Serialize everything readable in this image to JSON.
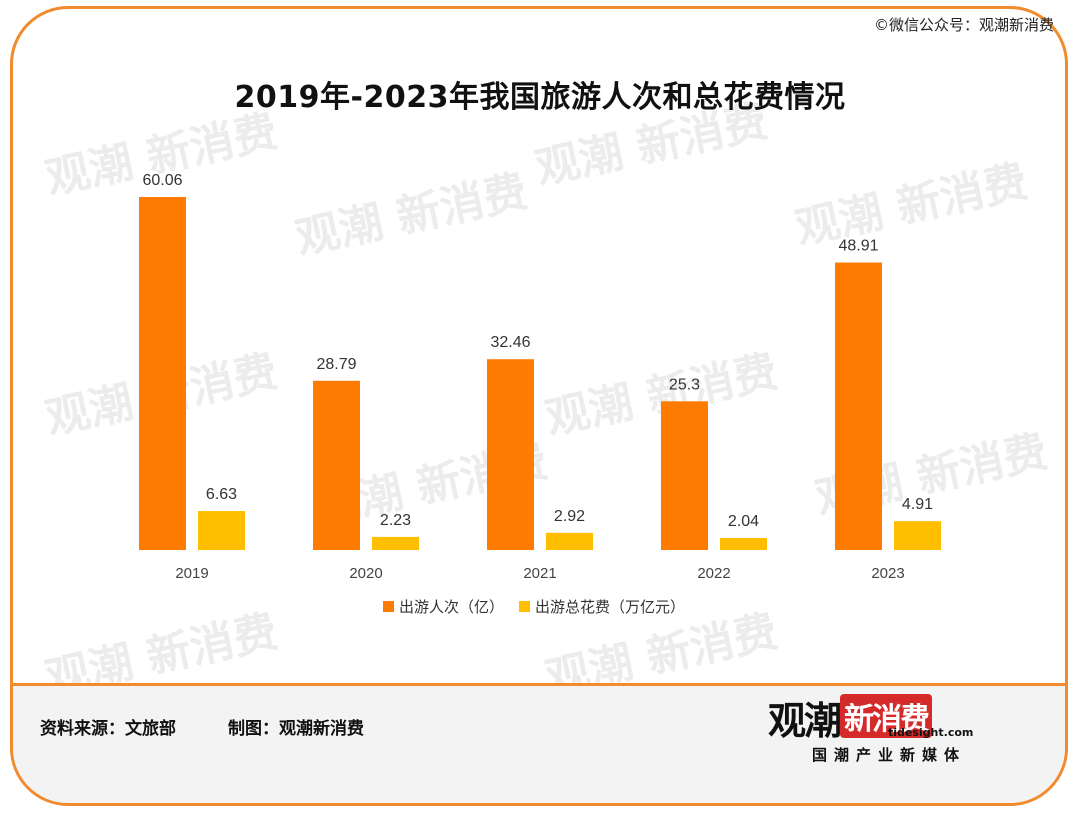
{
  "watermark_top": "©微信公众号：观潮新消费",
  "footer": {
    "source": "资料来源：文旅部",
    "maker": "制图：观潮新消费"
  },
  "logo": {
    "part1": "观潮",
    "part2": "新消费",
    "domain": "tidesight.com",
    "subtitle": "国潮产业新媒体"
  },
  "chart_data": {
    "type": "bar",
    "title": "2019年-2023年我国旅游人次和总花费情况",
    "categories": [
      "2019",
      "2020",
      "2021",
      "2022",
      "2023"
    ],
    "series": [
      {
        "name": "出游人次（亿）",
        "values": [
          60.06,
          28.79,
          32.46,
          25.3,
          48.91
        ],
        "color": "#ff7a00"
      },
      {
        "name": "出游总花费（万亿元）",
        "values": [
          6.63,
          2.23,
          2.92,
          2.04,
          4.91
        ],
        "color": "#ffbf00"
      }
    ],
    "data_labels": [
      [
        "60.06",
        "28.79",
        "32.46",
        "25.3",
        "48.91"
      ],
      [
        "6.63",
        "2.23",
        "2.92",
        "2.04",
        "4.91"
      ]
    ],
    "ylim": [
      0,
      60.06
    ],
    "grid": false,
    "legend_position": "bottom"
  }
}
